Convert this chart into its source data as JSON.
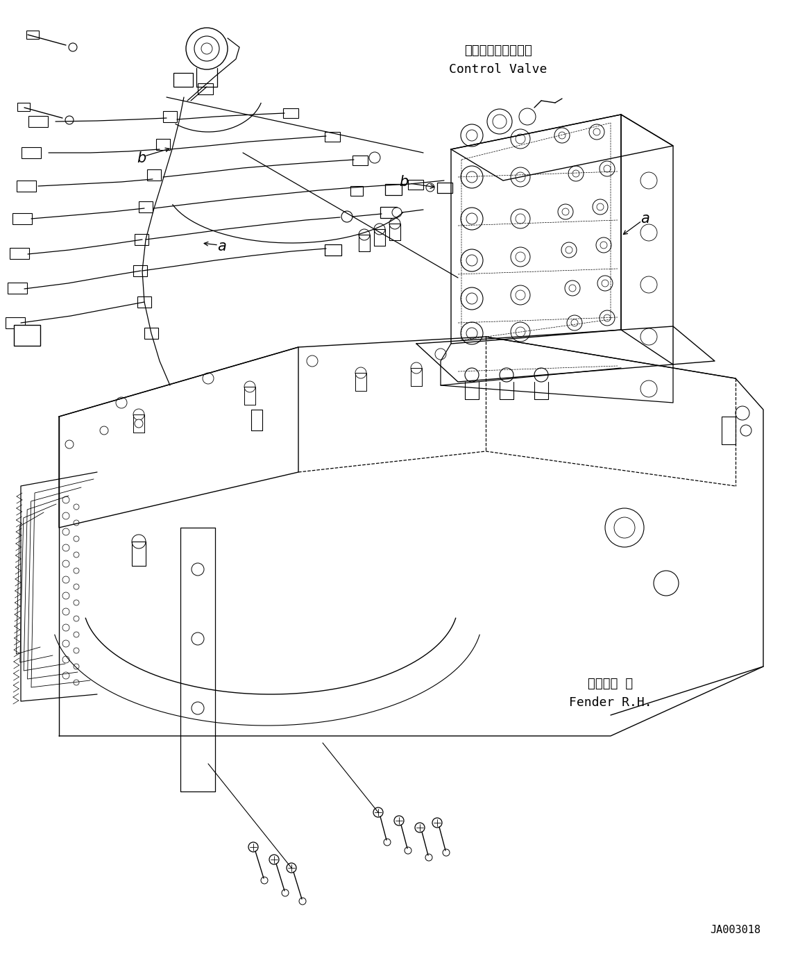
{
  "background_color": "#ffffff",
  "line_color": "#000000",
  "label_control_valve_jp": "コントロールバルブ",
  "label_control_valve_en": "Control Valve",
  "label_fender_jp": "フェンダ 右",
  "label_fender_en": "Fender R.H.",
  "label_a": "a",
  "label_b": "b",
  "part_number": "JA003018",
  "font_size_label": 13,
  "font_size_part": 11,
  "font_size_ab": 15,
  "figsize": [
    11.63,
    14.0
  ],
  "dpi": 100
}
